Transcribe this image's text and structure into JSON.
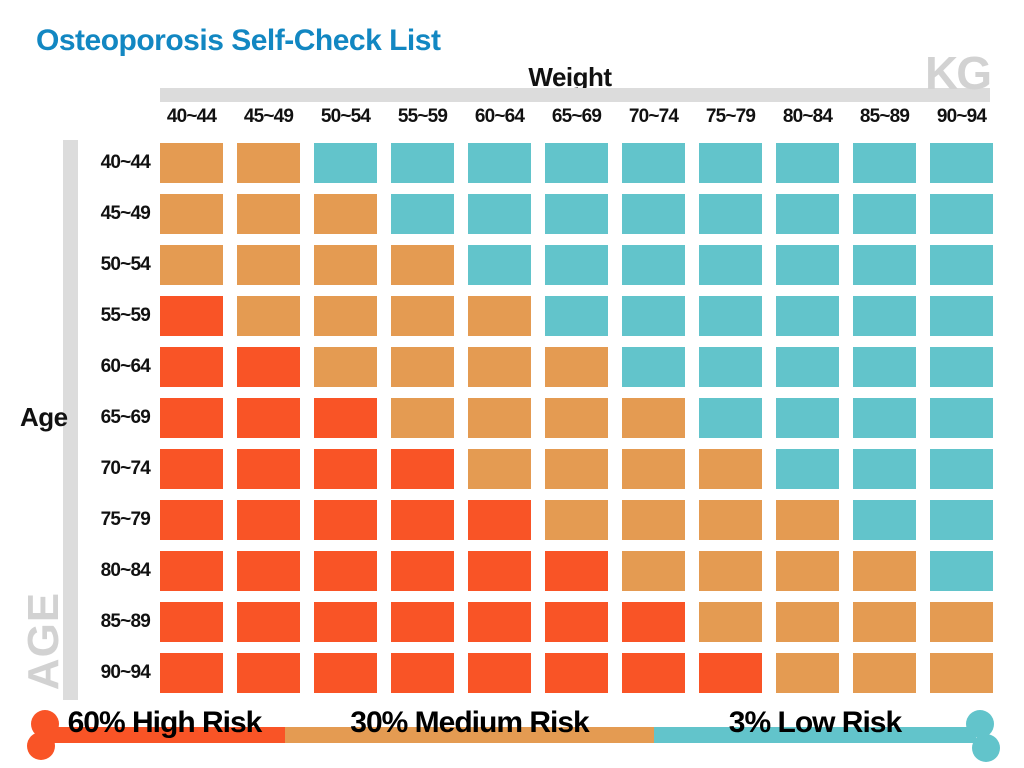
{
  "title": "Osteoporosis Self-Check List",
  "axes": {
    "weight_label": "Weight",
    "weight_unit": "KG",
    "age_label": "Age",
    "age_watermark": "AGE"
  },
  "colors": {
    "high": "#F95426",
    "medium": "#E49B52",
    "low": "#62C4CB",
    "title": "#1287C2",
    "axis_bar": "#DCDCDC",
    "axis_unit_text": "#D2D2D2"
  },
  "legend": {
    "items": [
      {
        "key": "high",
        "label": "60% High Risk",
        "color": "#F95426"
      },
      {
        "key": "medium",
        "label": "30% Medium Risk",
        "color": "#E49B52"
      },
      {
        "key": "low",
        "label": "3% Low Risk",
        "color": "#62C4CB"
      }
    ]
  },
  "chart_data": {
    "type": "heatmap",
    "title": "Osteoporosis Self-Check List",
    "xlabel": "Weight (KG)",
    "ylabel": "Age",
    "legend_position": "bottom",
    "columns": [
      "40~44",
      "45~49",
      "50~54",
      "55~59",
      "60~64",
      "65~69",
      "70~74",
      "75~79",
      "80~84",
      "85~89",
      "90~94"
    ],
    "rows": [
      "40~44",
      "45~49",
      "50~54",
      "55~59",
      "60~64",
      "65~69",
      "70~74",
      "75~79",
      "80~84",
      "85~89",
      "90~94"
    ],
    "risk_levels": {
      "H": "60% High Risk",
      "M": "30% Medium Risk",
      "L": "3% Low Risk"
    },
    "cells": [
      [
        "M",
        "M",
        "L",
        "L",
        "L",
        "L",
        "L",
        "L",
        "L",
        "L",
        "L"
      ],
      [
        "M",
        "M",
        "M",
        "L",
        "L",
        "L",
        "L",
        "L",
        "L",
        "L",
        "L"
      ],
      [
        "M",
        "M",
        "M",
        "M",
        "L",
        "L",
        "L",
        "L",
        "L",
        "L",
        "L"
      ],
      [
        "H",
        "M",
        "M",
        "M",
        "M",
        "L",
        "L",
        "L",
        "L",
        "L",
        "L"
      ],
      [
        "H",
        "H",
        "M",
        "M",
        "M",
        "M",
        "L",
        "L",
        "L",
        "L",
        "L"
      ],
      [
        "H",
        "H",
        "H",
        "M",
        "M",
        "M",
        "M",
        "L",
        "L",
        "L",
        "L"
      ],
      [
        "H",
        "H",
        "H",
        "H",
        "M",
        "M",
        "M",
        "M",
        "L",
        "L",
        "L"
      ],
      [
        "H",
        "H",
        "H",
        "H",
        "H",
        "M",
        "M",
        "M",
        "M",
        "L",
        "L"
      ],
      [
        "H",
        "H",
        "H",
        "H",
        "H",
        "H",
        "M",
        "M",
        "M",
        "M",
        "L"
      ],
      [
        "H",
        "H",
        "H",
        "H",
        "H",
        "H",
        "H",
        "M",
        "M",
        "M",
        "M"
      ],
      [
        "H",
        "H",
        "H",
        "H",
        "H",
        "H",
        "H",
        "H",
        "M",
        "M",
        "M"
      ]
    ]
  }
}
